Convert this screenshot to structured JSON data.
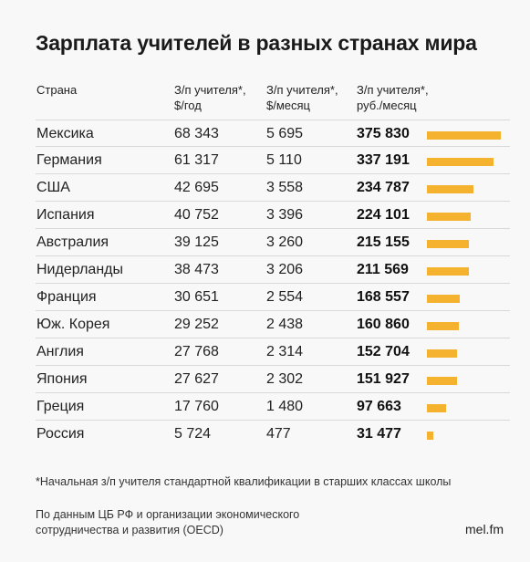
{
  "title": "Зарплата учителей в разных странах мира",
  "headers": {
    "country": "Страна",
    "year": "З/п учителя*, $/год",
    "month": "З/п учителя*, $/месяц",
    "rub": "З/п учителя*, руб./месяц"
  },
  "rows": [
    {
      "country": "Мексика",
      "year": "68 343",
      "month": "5 695",
      "rub": "375 830"
    },
    {
      "country": "Германия",
      "year": "61 317",
      "month": "5 110",
      "rub": "337 191"
    },
    {
      "country": "США",
      "year": "42 695",
      "month": "3 558",
      "rub": "234 787"
    },
    {
      "country": "Испания",
      "year": "40 752",
      "month": "3 396",
      "rub": "224 101"
    },
    {
      "country": "Австралия",
      "year": "39 125",
      "month": "3 260",
      "rub": "215 155"
    },
    {
      "country": "Нидерланды",
      "year": "38 473",
      "month": "3 206",
      "rub": "211 569"
    },
    {
      "country": "Франция",
      "year": "30 651",
      "month": "2 554",
      "rub": "168 557"
    },
    {
      "country": "Юж. Корея",
      "year": "29 252",
      "month": "2 438",
      "rub": "160 860"
    },
    {
      "country": "Англия",
      "year": "27 768",
      "month": "2 314",
      "rub": "152 704"
    },
    {
      "country": "Япония",
      "year": "27 627",
      "month": "2 302",
      "rub": "151 927"
    },
    {
      "country": "Греция",
      "year": "17 760",
      "month": "1 480",
      "rub": "97 663"
    },
    {
      "country": "Россия",
      "year": "5 724",
      "month": "477",
      "rub": "31 477"
    }
  ],
  "footnote": "*Начальная з/п учителя стандартной квалификации в старших классах школы",
  "source": "По данным ЦБ РФ и организации экономического сотрудничества и развития (OECD)",
  "brand": "mel.fm",
  "colors": {
    "bar": "#f5b22e",
    "background": "#f8f8f8"
  },
  "chart_data": {
    "type": "bar",
    "categories": [
      "Мексика",
      "Германия",
      "США",
      "Испания",
      "Австралия",
      "Нидерланды",
      "Франция",
      "Юж. Корея",
      "Англия",
      "Япония",
      "Греция",
      "Россия"
    ],
    "values": [
      375830,
      337191,
      234787,
      224101,
      215155,
      211569,
      168557,
      160860,
      152704,
      151927,
      97663,
      31477
    ],
    "title": "Зарплата учителей в разных странах мира",
    "ylabel": "З/п учителя*, руб./месяц",
    "orientation": "horizontal"
  }
}
